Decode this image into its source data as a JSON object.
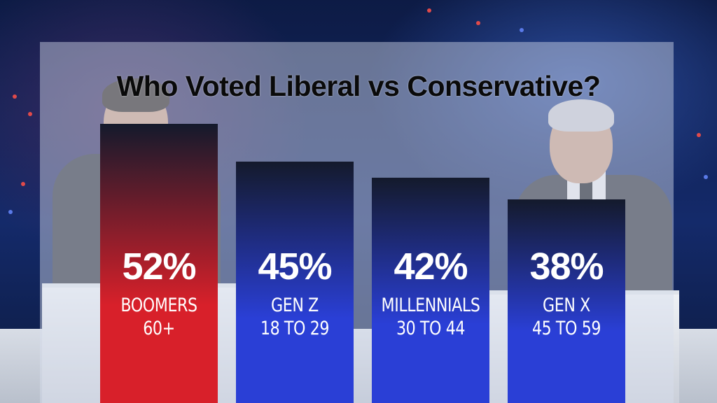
{
  "chart_data": {
    "type": "bar",
    "title": "Who Voted Liberal vs Conservative?",
    "categories": [
      "BOOMERS",
      "GEN Z",
      "MILLENNIALS",
      "GEN X"
    ],
    "subcategories": [
      "60+",
      "18 TO 29",
      "30 TO 44",
      "45 TO 59"
    ],
    "values": [
      52,
      45,
      42,
      38
    ],
    "value_labels": [
      "52%",
      "45%",
      "42%",
      "38%"
    ],
    "bar_colors": [
      "#d8202a",
      "#2a3fd6",
      "#2a3fd6",
      "#2a3fd6"
    ],
    "ylim": [
      0,
      70
    ],
    "grid": false,
    "legend": "none"
  }
}
